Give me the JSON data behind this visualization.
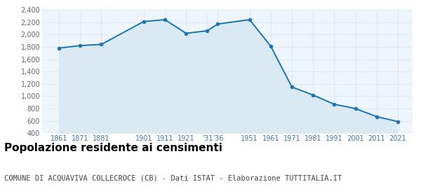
{
  "years": [
    1861,
    1871,
    1881,
    1901,
    1911,
    1921,
    1931,
    1936,
    1951,
    1961,
    1971,
    1981,
    1991,
    2001,
    2011,
    2021
  ],
  "population": [
    1780,
    1820,
    1840,
    2210,
    2240,
    2020,
    2060,
    2170,
    2240,
    1810,
    1150,
    1020,
    870,
    800,
    670,
    590
  ],
  "line_color": "#1a73b5",
  "fill_color": "#daeaf5",
  "marker_color": "#1a73b5",
  "bg_color": "#eef5fb",
  "grid_color": "#c5d8e8",
  "ylim": [
    400,
    2400
  ],
  "yticks": [
    400,
    600,
    800,
    1000,
    1200,
    1400,
    1600,
    1800,
    2000,
    2200,
    2400
  ],
  "xtick_positions": [
    1861,
    1871,
    1881,
    1901,
    1911,
    1921,
    1931,
    1936,
    1951,
    1961,
    1971,
    1981,
    1991,
    2001,
    2011,
    2021
  ],
  "xtick_labels": [
    "1861",
    "1871",
    "1881",
    "1901",
    "1911",
    "1921",
    "’31",
    "’36",
    "1951",
    "1961",
    "1971",
    "1981",
    "1991",
    "2001",
    "2011",
    "2021"
  ],
  "xlabel_color": "#4472a8",
  "ylabel_color": "#666666",
  "title": "Popolazione residente ai censimenti",
  "subtitle": "COMUNE DI ACQUAVIVA COLLECROCE (CB) - Dati ISTAT - Elaborazione TUTTITALIA.IT",
  "title_fontsize": 11,
  "subtitle_fontsize": 7.5
}
